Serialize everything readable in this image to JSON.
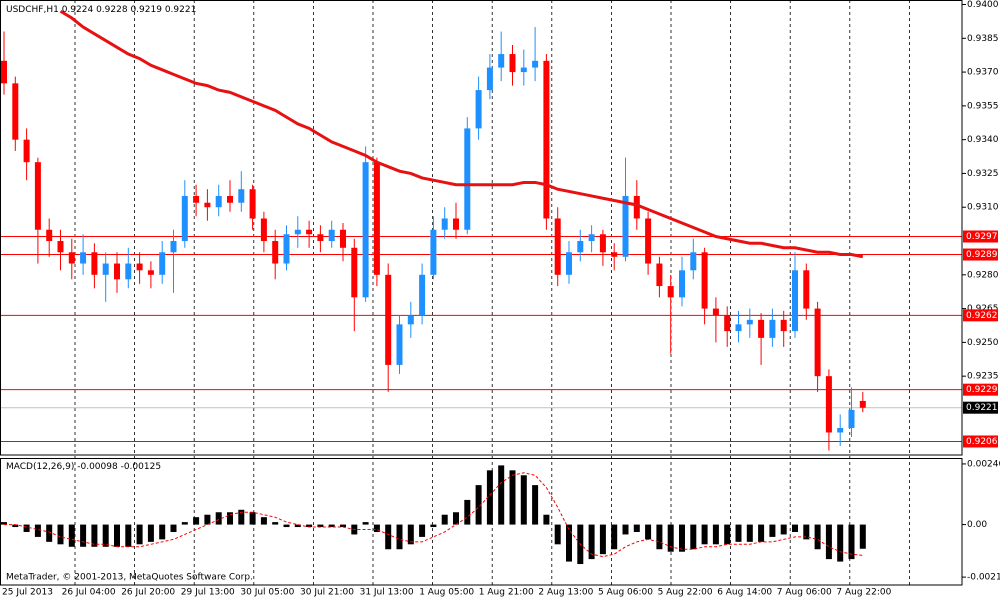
{
  "chart_data": [
    {
      "type": "candlestick",
      "title": "USDCHF,H1",
      "header_values": [
        0.9224,
        0.9228,
        0.9219,
        0.9221
      ],
      "x_labels": [
        "25 Jul 2013",
        "26 Jul 04:00",
        "26 Jul 20:00",
        "29 Jul 13:00",
        "30 Jul 05:00",
        "30 Jul 21:00",
        "31 Jul 13:00",
        "1 Aug 05:00",
        "1 Aug 21:00",
        "2 Aug 13:00",
        "5 Aug 06:00",
        "5 Aug 22:00",
        "6 Aug 14:00",
        "7 Aug 06:00",
        "7 Aug 22:00"
      ],
      "open": [
        0.9375,
        0.9365,
        0.934,
        0.933,
        0.93,
        0.9295,
        0.929,
        0.9285,
        0.929,
        0.928,
        0.9285,
        0.9278,
        0.9285,
        0.9282,
        0.928,
        0.929,
        0.9295,
        0.9315,
        0.9312,
        0.931,
        0.9315,
        0.9312,
        0.9318,
        0.9305,
        0.9295,
        0.9285,
        0.9298,
        0.93,
        0.9298,
        0.9295,
        0.93,
        0.9292,
        0.927,
        0.933,
        0.928,
        0.924,
        0.9258,
        0.9262,
        0.928,
        0.93,
        0.9305,
        0.93,
        0.9345,
        0.9362,
        0.9372,
        0.9378,
        0.937,
        0.9372,
        0.9375,
        0.9305,
        0.928,
        0.929,
        0.9295,
        0.9298,
        0.929,
        0.9288,
        0.9315,
        0.9305,
        0.9285,
        0.9275,
        0.927,
        0.9282,
        0.929,
        0.9265,
        0.9262,
        0.9255,
        0.9258,
        0.926,
        0.9252,
        0.926,
        0.9255,
        0.9282,
        0.9265,
        0.9235,
        0.921,
        0.9212,
        0.9224
      ],
      "high": [
        0.9388,
        0.9368,
        0.9345,
        0.9332,
        0.9305,
        0.93,
        0.9296,
        0.9298,
        0.9294,
        0.929,
        0.929,
        0.9292,
        0.929,
        0.9286,
        0.9295,
        0.93,
        0.9322,
        0.932,
        0.9318,
        0.932,
        0.9322,
        0.9326,
        0.932,
        0.9308,
        0.93,
        0.9302,
        0.9306,
        0.9304,
        0.9302,
        0.9304,
        0.9303,
        0.9296,
        0.9337,
        0.9332,
        0.9285,
        0.9262,
        0.9268,
        0.9285,
        0.9306,
        0.931,
        0.9312,
        0.935,
        0.9368,
        0.9378,
        0.9388,
        0.9382,
        0.938,
        0.939,
        0.9378,
        0.931,
        0.9295,
        0.93,
        0.9302,
        0.93,
        0.9294,
        0.9332,
        0.9322,
        0.9308,
        0.9288,
        0.928,
        0.9288,
        0.9296,
        0.9292,
        0.927,
        0.9266,
        0.9264,
        0.9265,
        0.9263,
        0.9265,
        0.9264,
        0.929,
        0.9285,
        0.9268,
        0.9238,
        0.9218,
        0.923,
        0.9228
      ],
      "low": [
        0.936,
        0.9335,
        0.9322,
        0.9285,
        0.9288,
        0.9282,
        0.9278,
        0.928,
        0.9274,
        0.9268,
        0.9272,
        0.9274,
        0.9276,
        0.9274,
        0.9276,
        0.9272,
        0.9292,
        0.9306,
        0.9304,
        0.9306,
        0.9308,
        0.9308,
        0.93,
        0.929,
        0.9278,
        0.9282,
        0.9292,
        0.9292,
        0.929,
        0.9292,
        0.9286,
        0.9255,
        0.9268,
        0.9275,
        0.9228,
        0.9236,
        0.9252,
        0.9258,
        0.9278,
        0.9296,
        0.9296,
        0.9298,
        0.934,
        0.9358,
        0.9366,
        0.9364,
        0.9364,
        0.9366,
        0.93,
        0.9275,
        0.9276,
        0.9286,
        0.929,
        0.9284,
        0.9282,
        0.9286,
        0.93,
        0.928,
        0.927,
        0.9245,
        0.9266,
        0.9278,
        0.9258,
        0.925,
        0.9248,
        0.925,
        0.9252,
        0.924,
        0.9248,
        0.9248,
        0.9252,
        0.926,
        0.9228,
        0.9202,
        0.9204,
        0.9208,
        0.9219
      ],
      "close": [
        0.9365,
        0.934,
        0.933,
        0.93,
        0.9295,
        0.929,
        0.9285,
        0.929,
        0.928,
        0.9285,
        0.9278,
        0.9285,
        0.9282,
        0.928,
        0.929,
        0.9295,
        0.9315,
        0.9312,
        0.931,
        0.9315,
        0.9312,
        0.9318,
        0.9305,
        0.9295,
        0.9285,
        0.9298,
        0.93,
        0.9298,
        0.9295,
        0.93,
        0.9292,
        0.927,
        0.933,
        0.928,
        0.924,
        0.9258,
        0.9262,
        0.928,
        0.93,
        0.9305,
        0.93,
        0.9345,
        0.9362,
        0.9372,
        0.9378,
        0.937,
        0.9372,
        0.9375,
        0.9305,
        0.928,
        0.929,
        0.9295,
        0.9298,
        0.929,
        0.9288,
        0.9315,
        0.9305,
        0.9285,
        0.9275,
        0.927,
        0.9282,
        0.929,
        0.9265,
        0.9262,
        0.9255,
        0.9258,
        0.926,
        0.9252,
        0.926,
        0.9255,
        0.9282,
        0.9265,
        0.9235,
        0.921,
        0.9212,
        0.922,
        0.9221
      ],
      "up_color": "#1e90ff",
      "down_color": "#ff0000",
      "ma": {
        "color": "#e81010",
        "values": [
          null,
          null,
          null,
          null,
          null,
          0.9397,
          0.9394,
          0.939,
          0.9387,
          0.9384,
          0.9381,
          0.9378,
          0.9376,
          0.9373,
          0.9371,
          0.9369,
          0.9367,
          0.9365,
          0.9364,
          0.9362,
          0.9361,
          0.9359,
          0.9357,
          0.9355,
          0.9353,
          0.935,
          0.9347,
          0.9345,
          0.9342,
          0.9339,
          0.9337,
          0.9335,
          0.9333,
          0.933,
          0.9328,
          0.9326,
          0.9325,
          0.9323,
          0.9322,
          0.9321,
          0.932,
          0.932,
          0.932,
          0.932,
          0.932,
          0.932,
          0.9321,
          0.9321,
          0.932,
          0.9318,
          0.9317,
          0.9316,
          0.9315,
          0.9314,
          0.9313,
          0.9312,
          0.9311,
          0.9309,
          0.9307,
          0.9305,
          0.9303,
          0.9301,
          0.9299,
          0.9297,
          0.9296,
          0.9295,
          0.9294,
          0.9294,
          0.9293,
          0.9292,
          0.9292,
          0.9291,
          0.929,
          0.929,
          0.9289,
          0.9289,
          0.9288
        ]
      },
      "levels": [
        0.9297,
        0.9289,
        0.9262,
        0.9229,
        0.9206
      ],
      "level_color": "#ff0000",
      "current_price": 0.9221,
      "ylim": [
        0.92,
        0.9402
      ],
      "yticks": [
        {
          "value": 0.94,
          "label": "0.9400"
        },
        0.9385,
        {
          "value": 0.937,
          "label": "0.9370"
        },
        0.9355,
        {
          "value": 0.934,
          "label": "0.9340"
        },
        0.9325,
        {
          "value": 0.931,
          "label": "0.9310"
        },
        {
          "value": 0.928,
          "label": "0.9280"
        },
        0.9265,
        {
          "value": 0.925,
          "label": "0.9250"
        },
        0.9235
      ]
    },
    {
      "type": "macd",
      "title": "MACD(12,26,9)",
      "header_values": [
        -0.00098,
        -0.00125
      ],
      "copyright": "MetaTrader, © 2001-2013, MetaQuotes Software Corp.",
      "histogram": {
        "color": "#000000",
        "values": [
          0.0001,
          -0.0001,
          -0.0003,
          -0.0005,
          -0.0007,
          -0.0008,
          -0.0009,
          -0.0009,
          -0.0009,
          -0.0009,
          -0.0009,
          -0.0009,
          -0.0008,
          -0.0007,
          -0.0006,
          -0.0003,
          0.0001,
          0.0003,
          0.0004,
          0.0005,
          0.0005,
          0.0006,
          0.0005,
          0.0003,
          0.0001,
          -0.0001,
          -0.0001,
          -0.0001,
          -0.0001,
          -0.0001,
          -0.0001,
          -0.0004,
          0.0001,
          -0.0003,
          -0.001,
          -0.001,
          -0.0008,
          -0.0005,
          -0.0001,
          0.0004,
          0.0005,
          0.001,
          0.0016,
          0.0022,
          0.0024,
          0.0022,
          0.002,
          0.0016,
          0.0004,
          -0.0008,
          -0.0015,
          -0.0016,
          -0.0014,
          -0.0012,
          -0.001,
          -0.0004,
          -0.0003,
          -0.0006,
          -0.001,
          -0.0011,
          -0.0011,
          -0.001,
          -0.0008,
          -0.0008,
          -0.0008,
          -0.0007,
          -0.0007,
          -0.0007,
          -0.0005,
          -0.0004,
          -0.0003,
          -0.0006,
          -0.001,
          -0.0014,
          -0.0015,
          -0.0014,
          -0.00098
        ]
      },
      "signal": {
        "color": "#ff0000",
        "values": [
          0.0,
          0.0,
          -0.0001,
          -0.0002,
          -0.0003,
          -0.0005,
          -0.0006,
          -0.0007,
          -0.0008,
          -0.0008,
          -0.0009,
          -0.0009,
          -0.0009,
          -0.0008,
          -0.0007,
          -0.0006,
          -0.0004,
          -0.0002,
          0.0,
          0.0002,
          0.0004,
          0.0005,
          0.0005,
          0.0004,
          0.0003,
          0.0001,
          0.0,
          -0.0001,
          -0.0001,
          -0.0001,
          -0.0001,
          -0.0002,
          -0.0002,
          -0.0002,
          -0.0004,
          -0.0006,
          -0.0007,
          -0.0007,
          -0.0005,
          -0.0003,
          0.0,
          0.0003,
          0.0007,
          0.0012,
          0.0017,
          0.002,
          0.0021,
          0.002,
          0.0015,
          0.0007,
          -0.0002,
          -0.0008,
          -0.0012,
          -0.0013,
          -0.0012,
          -0.0009,
          -0.0007,
          -0.0006,
          -0.0007,
          -0.0009,
          -0.001,
          -0.001,
          -0.0009,
          -0.0009,
          -0.0008,
          -0.0008,
          -0.0008,
          -0.0007,
          -0.0007,
          -0.0006,
          -0.0005,
          -0.0005,
          -0.0006,
          -0.0009,
          -0.0011,
          -0.0012,
          -0.00125
        ]
      },
      "ylim": [
        -0.00245,
        0.0027
      ],
      "yticks": [
        0.00246,
        {
          "value": 0,
          "label": "0.00"
        },
        -0.00213
      ]
    }
  ]
}
